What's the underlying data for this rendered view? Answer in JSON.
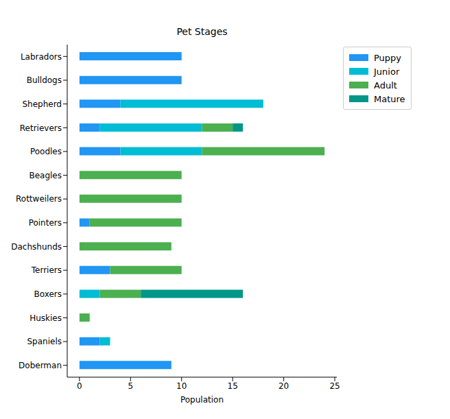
{
  "chart_data": {
    "type": "bar",
    "title": "Pet Stages",
    "x_label": "Population",
    "orientation": "horizontal",
    "stacked": true,
    "legend": "upper right",
    "grid": false,
    "categories": [
      "Labradors",
      "Bulldogs",
      "Shepherd",
      "Retrievers",
      "Poodles",
      "Beagles",
      "Rottweilers",
      "Pointers",
      "Dachshunds",
      "Terriers",
      "Boxers",
      "Huskies",
      "Spaniels",
      "Doberman"
    ],
    "series": [
      {
        "name": "Puppy",
        "color": "#2196f3",
        "values": [
          10,
          10,
          4,
          2,
          4,
          0,
          0,
          1,
          0,
          3,
          0,
          0,
          2,
          9
        ]
      },
      {
        "name": "Junior",
        "color": "#00bcd4",
        "values": [
          0,
          0,
          14,
          10,
          8,
          0,
          0,
          0,
          0,
          0,
          2,
          0,
          1,
          0
        ]
      },
      {
        "name": "Adult",
        "color": "#4caf50",
        "values": [
          0,
          0,
          0,
          3,
          12,
          10,
          10,
          9,
          9,
          7,
          4,
          1,
          0,
          0
        ]
      },
      {
        "name": "Mature",
        "color": "#009688",
        "values": [
          0,
          0,
          0,
          1,
          0,
          0,
          0,
          0,
          0,
          0,
          10,
          0,
          0,
          0
        ]
      }
    ],
    "xlim": [
      -1.2,
      25.2
    ],
    "xticks": [
      0,
      5,
      10,
      15,
      20,
      25
    ]
  }
}
